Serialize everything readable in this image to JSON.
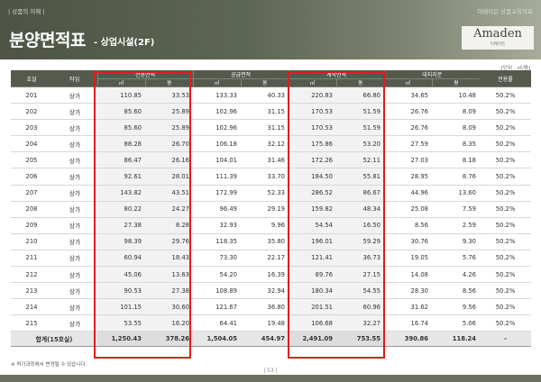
{
  "header": {
    "top_left": "| 상품의 이해 |",
    "top_right": "어메이든 상품교육자료",
    "title": "분양면적표",
    "subtitle": "- 상업시설(2F)",
    "logo_main": "Amaden",
    "logo_sub": "어메이든"
  },
  "unit_note": "[단위 : ㎡/평]",
  "columns": {
    "unit_no": "호실",
    "type": "타입",
    "exclusive": "전용면적",
    "supply": "공급면적",
    "contract": "계약면적",
    "land": "대지지분",
    "ratio": "전용률",
    "sqm": "㎡",
    "pyeong": "평"
  },
  "rows": [
    {
      "no": "201",
      "type": "상가",
      "e_m": "110.85",
      "e_p": "33.53",
      "s_m": "133.33",
      "s_p": "40.33",
      "c_m": "220.83",
      "c_p": "66.80",
      "l_m": "34.65",
      "l_p": "10.48",
      "r": "50.2%"
    },
    {
      "no": "202",
      "type": "상가",
      "e_m": "85.60",
      "e_p": "25.89",
      "s_m": "102.96",
      "s_p": "31.15",
      "c_m": "170.53",
      "c_p": "51.59",
      "l_m": "26.76",
      "l_p": "8.09",
      "r": "50.2%"
    },
    {
      "no": "203",
      "type": "상가",
      "e_m": "85.60",
      "e_p": "25.89",
      "s_m": "102.96",
      "s_p": "31.15",
      "c_m": "170.53",
      "c_p": "51.59",
      "l_m": "26.76",
      "l_p": "8.09",
      "r": "50.2%"
    },
    {
      "no": "204",
      "type": "상가",
      "e_m": "88.28",
      "e_p": "26.70",
      "s_m": "106.18",
      "s_p": "32.12",
      "c_m": "175.86",
      "c_p": "53.20",
      "l_m": "27.59",
      "l_p": "8.35",
      "r": "50.2%"
    },
    {
      "no": "205",
      "type": "상가",
      "e_m": "86.47",
      "e_p": "26.16",
      "s_m": "104.01",
      "s_p": "31.46",
      "c_m": "172.26",
      "c_p": "52.11",
      "l_m": "27.03",
      "l_p": "8.18",
      "r": "50.2%"
    },
    {
      "no": "206",
      "type": "상가",
      "e_m": "92.61",
      "e_p": "28.01",
      "s_m": "111.39",
      "s_p": "33.70",
      "c_m": "184.50",
      "c_p": "55.81",
      "l_m": "28.95",
      "l_p": "8.76",
      "r": "50.2%"
    },
    {
      "no": "207",
      "type": "상가",
      "e_m": "143.82",
      "e_p": "43.51",
      "s_m": "172.99",
      "s_p": "52.33",
      "c_m": "286.52",
      "c_p": "86.67",
      "l_m": "44.96",
      "l_p": "13.60",
      "r": "50.2%"
    },
    {
      "no": "208",
      "type": "상가",
      "e_m": "80.22",
      "e_p": "24.27",
      "s_m": "96.49",
      "s_p": "29.19",
      "c_m": "159.82",
      "c_p": "48.34",
      "l_m": "25.08",
      "l_p": "7.59",
      "r": "50.2%"
    },
    {
      "no": "209",
      "type": "상가",
      "e_m": "27.38",
      "e_p": "8.28",
      "s_m": "32.93",
      "s_p": "9.96",
      "c_m": "54.54",
      "c_p": "16.50",
      "l_m": "8.56",
      "l_p": "2.59",
      "r": "50.2%"
    },
    {
      "no": "210",
      "type": "상가",
      "e_m": "98.39",
      "e_p": "29.76",
      "s_m": "118.35",
      "s_p": "35.80",
      "c_m": "196.01",
      "c_p": "59.29",
      "l_m": "30.76",
      "l_p": "9.30",
      "r": "50.2%"
    },
    {
      "no": "211",
      "type": "상가",
      "e_m": "60.94",
      "e_p": "18.43",
      "s_m": "73.30",
      "s_p": "22.17",
      "c_m": "121.41",
      "c_p": "36.73",
      "l_m": "19.05",
      "l_p": "5.76",
      "r": "50.2%"
    },
    {
      "no": "212",
      "type": "상가",
      "e_m": "45.06",
      "e_p": "13.63",
      "s_m": "54.20",
      "s_p": "16.39",
      "c_m": "89.76",
      "c_p": "27.15",
      "l_m": "14.08",
      "l_p": "4.26",
      "r": "50.2%"
    },
    {
      "no": "213",
      "type": "상가",
      "e_m": "90.53",
      "e_p": "27.38",
      "s_m": "108.89",
      "s_p": "32.94",
      "c_m": "180.34",
      "c_p": "54.55",
      "l_m": "28.30",
      "l_p": "8.56",
      "r": "50.2%"
    },
    {
      "no": "214",
      "type": "상가",
      "e_m": "101.15",
      "e_p": "30.60",
      "s_m": "121.67",
      "s_p": "36.80",
      "c_m": "201.51",
      "c_p": "60.96",
      "l_m": "31.62",
      "l_p": "9.56",
      "r": "50.2%"
    },
    {
      "no": "215",
      "type": "상가",
      "e_m": "53.55",
      "e_p": "16.20",
      "s_m": "64.41",
      "s_p": "19.48",
      "c_m": "106.68",
      "c_p": "32.27",
      "l_m": "16.74",
      "l_p": "5.06",
      "r": "50.2%"
    }
  ],
  "total": {
    "label": "합계(15호실)",
    "e_m": "1,250.43",
    "e_p": "378.26",
    "s_m": "1,504.05",
    "s_p": "454.97",
    "c_m": "2,491.09",
    "c_p": "753.55",
    "l_m": "390.86",
    "l_p": "118.24",
    "r": "-"
  },
  "footnote": "※ 허가과정에서 변경될 수 있습니다.",
  "page_number": "| 53 |",
  "colors": {
    "header_dark": "#4d5445",
    "table_header": "#555a4e",
    "highlight": "#e01c1c"
  }
}
